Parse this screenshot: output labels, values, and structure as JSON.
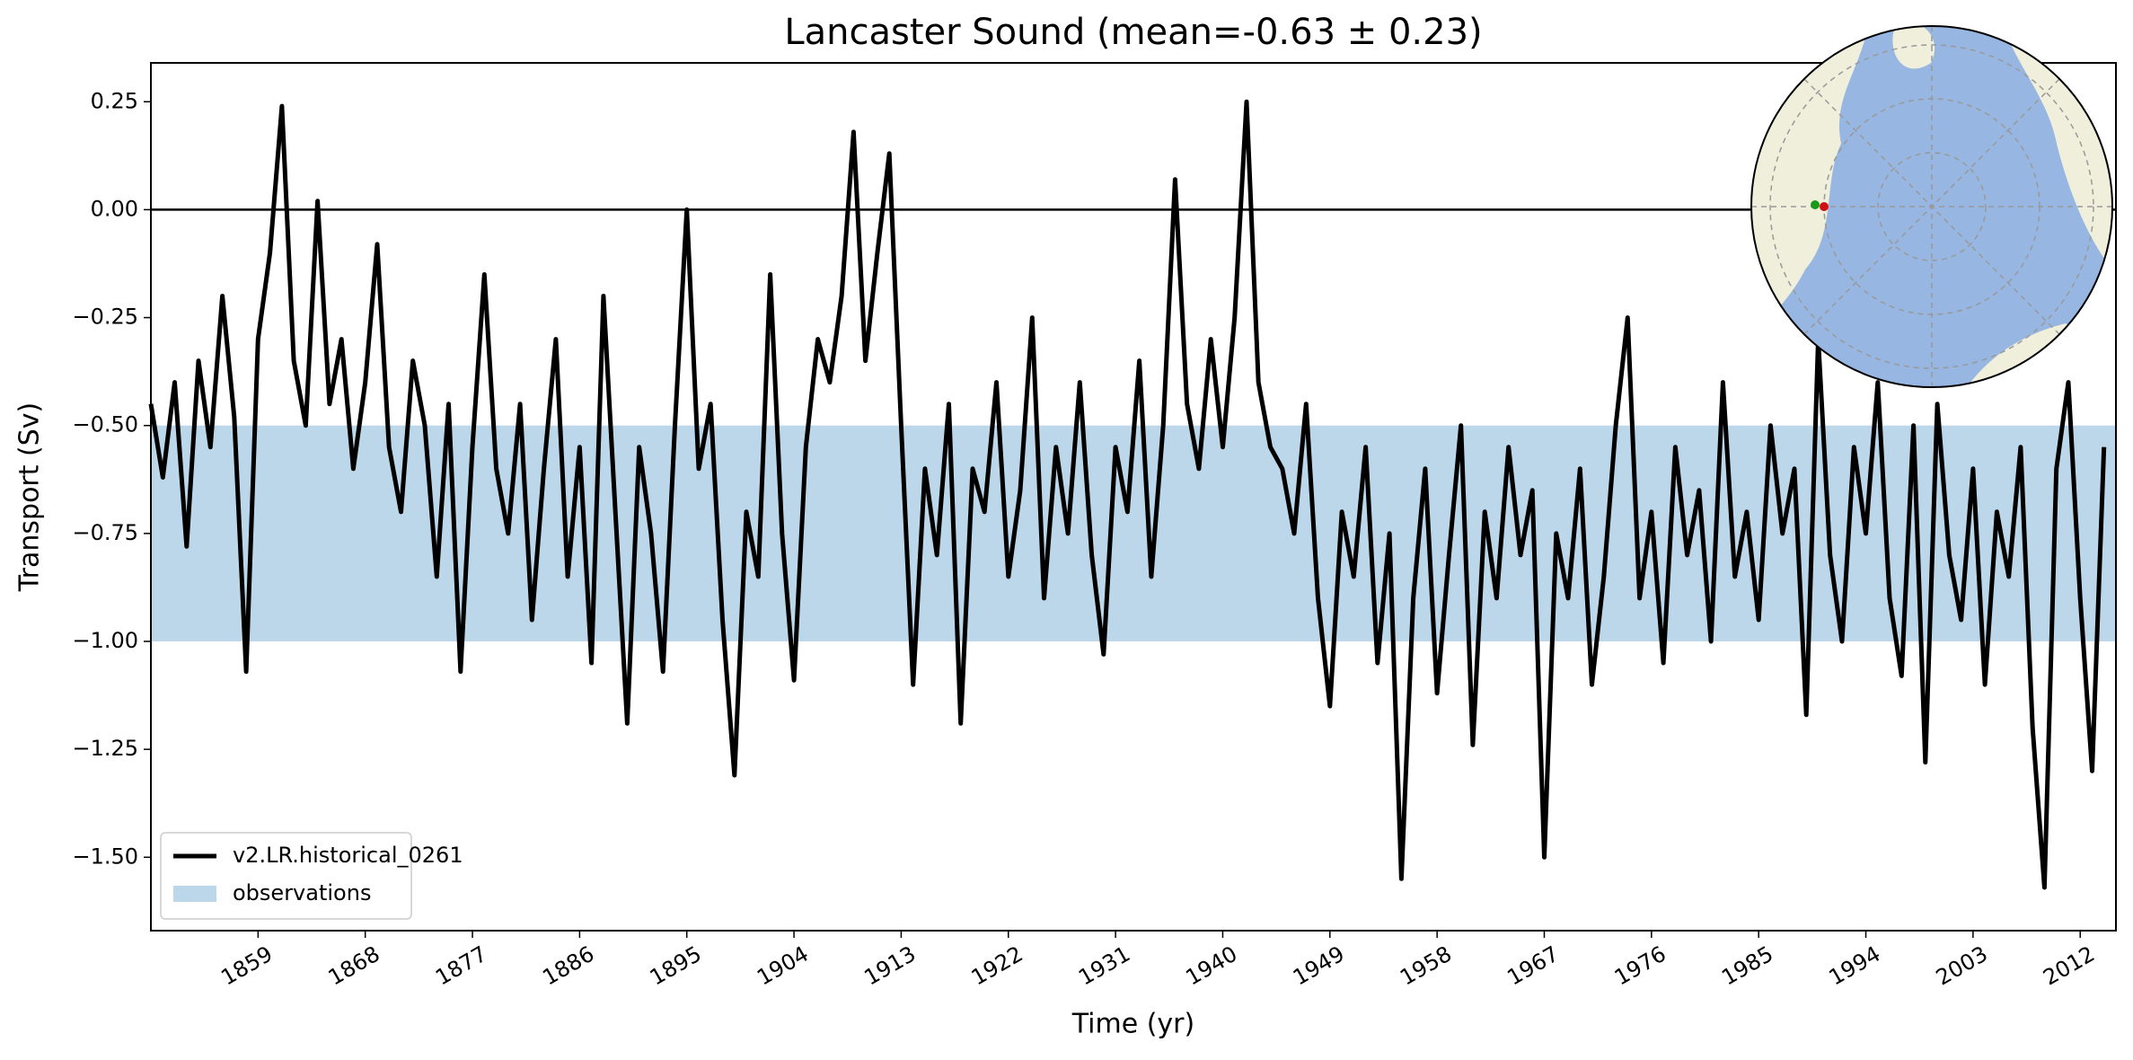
{
  "chart_data": {
    "type": "line",
    "title": "Lancaster Sound (mean=-0.63 ± 0.23)",
    "xlabel": "Time (yr)",
    "ylabel": "Transport (Sv)",
    "xlim": [
      1850,
      2015
    ],
    "ylim": [
      -1.67,
      0.34
    ],
    "xticks": [
      1859,
      1868,
      1877,
      1886,
      1895,
      1904,
      1913,
      1922,
      1931,
      1940,
      1949,
      1958,
      1967,
      1976,
      1985,
      1994,
      2003,
      2012
    ],
    "yticks": [
      {
        "value": 0.25,
        "label": "0.25"
      },
      {
        "value": 0,
        "label": "0.00"
      },
      {
        "value": -0.25,
        "label": "−0.25"
      },
      {
        "value": -0.5,
        "label": "−0.50"
      },
      {
        "value": -0.75,
        "label": "−0.75"
      },
      {
        "value": -1,
        "label": "−1.00"
      },
      {
        "value": -1.25,
        "label": "−1.25"
      },
      {
        "value": -1.5,
        "label": "−1.50"
      }
    ],
    "hline": 0,
    "band": {
      "name": "observations",
      "range": [
        -1.0,
        -0.5
      ],
      "color": "#bcd6ea"
    },
    "legend": "lower left",
    "x": [
      1850,
      1851,
      1852,
      1853,
      1854,
      1855,
      1856,
      1857,
      1858,
      1859,
      1860,
      1861,
      1862,
      1863,
      1864,
      1865,
      1866,
      1867,
      1868,
      1869,
      1870,
      1871,
      1872,
      1873,
      1874,
      1875,
      1876,
      1877,
      1878,
      1879,
      1880,
      1881,
      1882,
      1883,
      1884,
      1885,
      1886,
      1887,
      1888,
      1889,
      1890,
      1891,
      1892,
      1893,
      1894,
      1895,
      1896,
      1897,
      1898,
      1899,
      1900,
      1901,
      1902,
      1903,
      1904,
      1905,
      1906,
      1907,
      1908,
      1909,
      1910,
      1911,
      1912,
      1913,
      1914,
      1915,
      1916,
      1917,
      1918,
      1919,
      1920,
      1921,
      1922,
      1923,
      1924,
      1925,
      1926,
      1927,
      1928,
      1929,
      1930,
      1931,
      1932,
      1933,
      1934,
      1935,
      1936,
      1937,
      1938,
      1939,
      1940,
      1941,
      1942,
      1943,
      1944,
      1945,
      1946,
      1947,
      1948,
      1949,
      1950,
      1951,
      1952,
      1953,
      1954,
      1955,
      1956,
      1957,
      1958,
      1959,
      1960,
      1961,
      1962,
      1963,
      1964,
      1965,
      1966,
      1967,
      1968,
      1969,
      1970,
      1971,
      1972,
      1973,
      1974,
      1975,
      1976,
      1977,
      1978,
      1979,
      1980,
      1981,
      1982,
      1983,
      1984,
      1985,
      1986,
      1987,
      1988,
      1989,
      1990,
      1991,
      1992,
      1993,
      1994,
      1995,
      1996,
      1997,
      1998,
      1999,
      2000,
      2001,
      2002,
      2003,
      2004,
      2005,
      2006,
      2007,
      2008,
      2009,
      2010,
      2011,
      2012,
      2013,
      2014
    ],
    "series": [
      {
        "name": "v2.LR.historical_0261",
        "color": "#000000",
        "values": [
          -0.45,
          -0.62,
          -0.4,
          -0.78,
          -0.35,
          -0.55,
          -0.2,
          -0.48,
          -1.07,
          -0.3,
          -0.1,
          0.24,
          -0.35,
          -0.5,
          0.02,
          -0.45,
          -0.3,
          -0.6,
          -0.4,
          -0.08,
          -0.55,
          -0.7,
          -0.35,
          -0.5,
          -0.85,
          -0.45,
          -1.07,
          -0.55,
          -0.15,
          -0.6,
          -0.75,
          -0.45,
          -0.95,
          -0.6,
          -0.3,
          -0.85,
          -0.55,
          -1.05,
          -0.2,
          -0.7,
          -1.19,
          -0.55,
          -0.75,
          -1.07,
          -0.5,
          0.0,
          -0.6,
          -0.45,
          -0.95,
          -1.31,
          -0.7,
          -0.85,
          -0.15,
          -0.75,
          -1.09,
          -0.55,
          -0.3,
          -0.4,
          -0.2,
          0.18,
          -0.35,
          -0.1,
          0.13,
          -0.5,
          -1.1,
          -0.6,
          -0.8,
          -0.45,
          -1.19,
          -0.6,
          -0.7,
          -0.4,
          -0.85,
          -0.65,
          -0.25,
          -0.9,
          -0.55,
          -0.75,
          -0.4,
          -0.8,
          -1.03,
          -0.55,
          -0.7,
          -0.35,
          -0.85,
          -0.5,
          0.07,
          -0.45,
          -0.6,
          -0.3,
          -0.55,
          -0.25,
          0.25,
          -0.4,
          -0.55,
          -0.6,
          -0.75,
          -0.45,
          -0.9,
          -1.15,
          -0.7,
          -0.85,
          -0.55,
          -1.05,
          -0.75,
          -1.55,
          -0.9,
          -0.6,
          -1.12,
          -0.8,
          -0.5,
          -1.24,
          -0.7,
          -0.9,
          -0.55,
          -0.8,
          -0.65,
          -1.5,
          -0.75,
          -0.9,
          -0.6,
          -1.1,
          -0.85,
          -0.5,
          -0.25,
          -0.9,
          -0.7,
          -1.05,
          -0.55,
          -0.8,
          -0.65,
          -1.0,
          -0.4,
          -0.85,
          -0.7,
          -0.95,
          -0.5,
          -0.75,
          -0.6,
          -1.17,
          -0.3,
          -0.8,
          -1.0,
          -0.55,
          -0.75,
          -0.4,
          -0.9,
          -1.08,
          -0.5,
          -1.28,
          -0.45,
          -0.8,
          -0.95,
          -0.6,
          -1.1,
          -0.7,
          -0.85,
          -0.55,
          -1.2,
          -1.57,
          -0.6,
          -0.4,
          -0.9,
          -1.3,
          -0.55
        ]
      }
    ]
  }
}
